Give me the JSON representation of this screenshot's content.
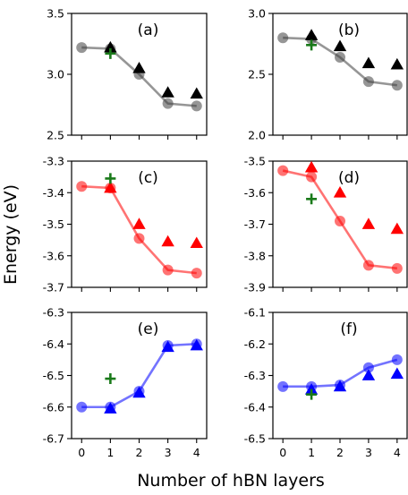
{
  "xlabel": "Number of hBN layers",
  "ylabel": "Energy (eV)",
  "chart_data": [
    {
      "panel": "(a)",
      "type": "line",
      "ylim": [
        2.5,
        3.5
      ],
      "yticks": [
        2.5,
        3.0,
        3.5
      ],
      "yticklabels": [
        "2.5",
        "3.0",
        "3.5"
      ],
      "xticks": [
        0,
        1,
        2,
        3,
        4
      ],
      "xticklabels": [],
      "color": "#404040",
      "line": {
        "x": [
          0,
          1,
          2,
          3,
          4
        ],
        "y": [
          3.22,
          3.21,
          3.0,
          2.76,
          2.74
        ]
      },
      "triangles": {
        "x": [
          1,
          2,
          3,
          4
        ],
        "y": [
          3.22,
          3.05,
          2.85,
          2.84
        ]
      },
      "cross": {
        "x": 1,
        "y": 3.17
      }
    },
    {
      "panel": "(b)",
      "type": "line",
      "ylim": [
        2.0,
        3.0
      ],
      "yticks": [
        2.0,
        2.5,
        3.0
      ],
      "yticklabels": [
        "2.0",
        "2.5",
        "3.0"
      ],
      "xticks": [
        0,
        1,
        2,
        3,
        4
      ],
      "xticklabels": [],
      "color": "#404040",
      "line": {
        "x": [
          0,
          1,
          2,
          3,
          4
        ],
        "y": [
          2.8,
          2.79,
          2.64,
          2.44,
          2.41
        ]
      },
      "triangles": {
        "x": [
          1,
          2,
          3,
          4
        ],
        "y": [
          2.82,
          2.73,
          2.59,
          2.58
        ]
      },
      "cross": {
        "x": 1,
        "y": 2.74
      }
    },
    {
      "panel": "(c)",
      "type": "line",
      "ylim": [
        -3.7,
        -3.3
      ],
      "yticks": [
        -3.7,
        -3.6,
        -3.5,
        -3.4,
        -3.3
      ],
      "yticklabels": [
        "-3.7",
        "-3.6",
        "-3.5",
        "-3.4",
        "-3.3"
      ],
      "xticks": [
        0,
        1,
        2,
        3,
        4
      ],
      "xticklabels": [],
      "color": "#ff0000",
      "line": {
        "x": [
          0,
          1,
          2,
          3,
          4
        ],
        "y": [
          -3.38,
          -3.385,
          -3.545,
          -3.645,
          -3.655
        ]
      },
      "triangles": {
        "x": [
          1,
          2,
          3,
          4
        ],
        "y": [
          -3.385,
          -3.5,
          -3.555,
          -3.56
        ]
      },
      "cross": {
        "x": 1,
        "y": -3.355
      }
    },
    {
      "panel": "(d)",
      "type": "line",
      "ylim": [
        -3.9,
        -3.5
      ],
      "yticks": [
        -3.9,
        -3.8,
        -3.7,
        -3.6,
        -3.5
      ],
      "yticklabels": [
        "-3.9",
        "-3.8",
        "-3.7",
        "-3.6",
        "-3.5"
      ],
      "xticks": [
        0,
        1,
        2,
        3,
        4
      ],
      "xticklabels": [],
      "color": "#ff0000",
      "line": {
        "x": [
          0,
          1,
          2,
          3,
          4
        ],
        "y": [
          -3.53,
          -3.55,
          -3.69,
          -3.83,
          -3.84
        ]
      },
      "triangles": {
        "x": [
          1,
          2,
          3,
          4
        ],
        "y": [
          -3.52,
          -3.6,
          -3.7,
          -3.715
        ]
      },
      "cross": {
        "x": 1,
        "y": -3.62
      }
    },
    {
      "panel": "(e)",
      "type": "line",
      "ylim": [
        -6.7,
        -6.3
      ],
      "yticks": [
        -6.7,
        -6.6,
        -6.5,
        -6.4,
        -6.3
      ],
      "yticklabels": [
        "-6.7",
        "-6.6",
        "-6.5",
        "-6.4",
        "-6.3"
      ],
      "xticks": [
        0,
        1,
        2,
        3,
        4
      ],
      "xticklabels": [
        "0",
        "1",
        "2",
        "3",
        "4"
      ],
      "color": "#0000ff",
      "line": {
        "x": [
          0,
          1,
          2,
          3,
          4
        ],
        "y": [
          -6.6,
          -6.6,
          -6.55,
          -6.405,
          -6.4
        ]
      },
      "triangles": {
        "x": [
          1,
          2,
          3,
          4
        ],
        "y": [
          -6.605,
          -6.555,
          -6.41,
          -6.405
        ]
      },
      "cross": {
        "x": 1,
        "y": -6.51
      }
    },
    {
      "panel": "(f)",
      "type": "line",
      "ylim": [
        -6.5,
        -6.1
      ],
      "yticks": [
        -6.5,
        -6.4,
        -6.3,
        -6.2,
        -6.1
      ],
      "yticklabels": [
        "-6.5",
        "-6.4",
        "-6.3",
        "-6.2",
        "-6.1"
      ],
      "xticks": [
        0,
        1,
        2,
        3,
        4
      ],
      "xticklabels": [
        "0",
        "1",
        "2",
        "3",
        "4"
      ],
      "color": "#0000ff",
      "line": {
        "x": [
          0,
          1,
          2,
          3,
          4
        ],
        "y": [
          -6.335,
          -6.335,
          -6.33,
          -6.275,
          -6.25
        ]
      },
      "triangles": {
        "x": [
          1,
          2,
          3,
          4
        ],
        "y": [
          -6.345,
          -6.335,
          -6.3,
          -6.295
        ]
      },
      "cross": {
        "x": 1,
        "y": -6.36
      }
    }
  ]
}
